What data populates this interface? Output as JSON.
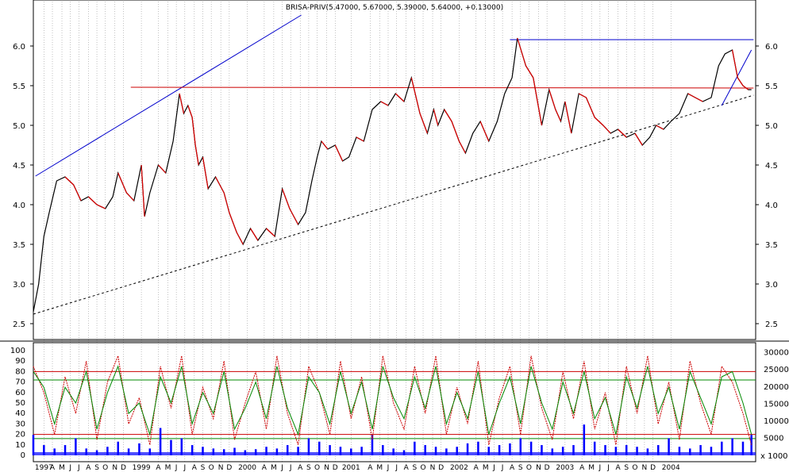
{
  "chart_data": [
    {
      "type": "line",
      "title": "BRISA-PRIV(5.47000, 5.67000, 5.39000, 5.64000, +0.13000)",
      "ylim": [
        2.3,
        6.4
      ],
      "yticks": [
        2.5,
        3.0,
        3.5,
        4.0,
        4.5,
        5.0,
        5.5,
        6.0
      ],
      "ytick_labels": [
        "2.5",
        "3.0",
        "3.5",
        "4.0",
        "4.5",
        "5.0",
        "5.5",
        "6.0"
      ],
      "grid": "vertical",
      "series": [
        {
          "color": "#000000",
          "x": [
            1997.4,
            1997.45,
            1997.5,
            1997.55,
            1997.62,
            1997.7,
            1997.78,
            1997.85,
            1997.92,
            1998.0,
            1998.08,
            1998.15,
            1998.2,
            1998.28,
            1998.35,
            1998.42,
            1998.45,
            1998.5,
            1998.58,
            1998.65,
            1998.72,
            1998.78,
            1998.82,
            1998.86,
            1998.9,
            1998.93,
            1998.96,
            1999.0,
            1999.05,
            1999.12,
            1999.2,
            1999.25,
            1999.32,
            1999.38,
            1999.45,
            1999.52,
            1999.6,
            1999.68,
            1999.75,
            1999.82,
            1999.9,
            1999.97,
            2000.03,
            2000.08,
            2000.12,
            2000.18,
            2000.25,
            2000.32,
            2000.38,
            2000.45,
            2000.52,
            2000.6,
            2000.68,
            2000.75,
            2000.82,
            2000.9,
            2000.97,
            2001.05,
            2001.12,
            2001.18,
            2001.22,
            2001.28,
            2001.35,
            2001.42,
            2001.48,
            2001.55,
            2001.62,
            2001.7,
            2001.78,
            2001.85,
            2001.92,
            2001.97,
            2002.05,
            2002.12,
            2002.2,
            2002.27,
            2002.33,
            2002.38,
            2002.42,
            2002.48,
            2002.55,
            2002.62,
            2002.7,
            2002.78,
            2002.85,
            2002.92,
            2003.0,
            2003.08,
            2003.15,
            2003.22,
            2003.28,
            2003.35,
            2003.42,
            2003.5,
            2003.58,
            2003.65,
            2003.72,
            2003.8,
            2003.87,
            2003.93,
            2004.0,
            2004.05,
            2004.1,
            2004.15,
            2004.18
          ],
          "values": [
            2.65,
            3.0,
            3.6,
            3.9,
            4.3,
            4.35,
            4.25,
            4.05,
            4.1,
            4.0,
            3.95,
            4.1,
            4.4,
            4.15,
            4.05,
            4.5,
            3.85,
            4.15,
            4.5,
            4.4,
            4.8,
            5.4,
            5.15,
            5.25,
            5.1,
            4.75,
            4.5,
            4.6,
            4.2,
            4.35,
            4.15,
            3.9,
            3.65,
            3.5,
            3.7,
            3.55,
            3.7,
            3.6,
            4.2,
            3.95,
            3.75,
            3.9,
            4.3,
            4.6,
            4.8,
            4.7,
            4.75,
            4.55,
            4.6,
            4.85,
            4.8,
            5.2,
            5.3,
            5.25,
            5.4,
            5.3,
            5.6,
            5.15,
            4.9,
            5.2,
            5.0,
            5.2,
            5.05,
            4.8,
            4.65,
            4.9,
            5.05,
            4.8,
            5.05,
            5.4,
            5.6,
            6.1,
            5.75,
            5.6,
            5.0,
            5.45,
            5.2,
            5.05,
            5.3,
            4.9,
            5.4,
            5.35,
            5.1,
            5.0,
            4.9,
            4.95,
            4.85,
            4.9,
            4.75,
            4.85,
            5.0,
            4.95,
            5.05,
            5.15,
            5.4,
            5.35,
            5.3,
            5.35,
            5.75,
            5.9,
            5.95,
            5.6,
            5.5,
            5.45,
            5.45
          ]
        }
      ],
      "lines": [
        {
          "style": "solid",
          "color": "#0000cc",
          "x": [
            1997.42,
            1999.93
          ],
          "y": [
            4.36,
            6.39
          ]
        },
        {
          "style": "solid",
          "color": "#0000cc",
          "x": [
            2001.9,
            2004.2
          ],
          "y": [
            6.08,
            6.08
          ]
        },
        {
          "style": "solid",
          "color": "#cc0000",
          "x": [
            1998.32,
            2004.2
          ],
          "y": [
            5.48,
            5.47
          ]
        },
        {
          "style": "dashed",
          "color": "#000000",
          "x": [
            1997.4,
            2004.2
          ],
          "y": [
            2.62,
            5.38
          ]
        },
        {
          "style": "solid",
          "color": "#0000cc",
          "x": [
            2003.9,
            2004.18
          ],
          "y": [
            5.25,
            5.95
          ]
        }
      ]
    },
    {
      "type": "line",
      "ylim": [
        0,
        100
      ],
      "yticks": [
        0,
        10,
        20,
        30,
        40,
        50,
        60,
        70,
        80,
        90,
        100
      ],
      "ytick_labels": [
        "0",
        "10",
        "20",
        "30",
        "40",
        "50",
        "60",
        "70",
        "80",
        "90",
        "100"
      ],
      "y2ticks": [
        5000,
        10000,
        15000,
        20000,
        25000,
        30000
      ],
      "y2tick_labels": [
        "5000",
        "10000",
        "15000",
        "20000",
        "25000",
        "30000"
      ],
      "y2_unit_label": "x 1000",
      "hlines": [
        {
          "y": 80,
          "color": "#cc0000"
        },
        {
          "y": 72,
          "color": "#008800"
        },
        {
          "y": 20,
          "color": "#cc0000"
        },
        {
          "y": 16,
          "color": "#008800"
        }
      ],
      "series": [
        {
          "style": "dashed",
          "color": "#cc0000",
          "x": [
            1997.4,
            1997.5,
            1997.6,
            1997.7,
            1997.8,
            1997.9,
            1998.0,
            1998.1,
            1998.2,
            1998.3,
            1998.4,
            1998.5,
            1998.6,
            1998.7,
            1998.8,
            1998.9,
            1999.0,
            1999.1,
            1999.2,
            1999.3,
            1999.4,
            1999.5,
            1999.6,
            1999.7,
            1999.8,
            1999.9,
            2000.0,
            2000.1,
            2000.2,
            2000.3,
            2000.4,
            2000.5,
            2000.6,
            2000.7,
            2000.8,
            2000.9,
            2001.0,
            2001.1,
            2001.2,
            2001.3,
            2001.4,
            2001.5,
            2001.6,
            2001.7,
            2001.8,
            2001.9,
            2002.0,
            2002.1,
            2002.2,
            2002.3,
            2002.4,
            2002.5,
            2002.6,
            2002.7,
            2002.8,
            2002.9,
            2003.0,
            2003.1,
            2003.2,
            2003.3,
            2003.4,
            2003.5,
            2003.6,
            2003.7,
            2003.8,
            2003.9,
            2004.0,
            2004.1,
            2004.18
          ],
          "values": [
            85,
            60,
            20,
            75,
            40,
            90,
            15,
            70,
            95,
            30,
            55,
            10,
            85,
            45,
            95,
            20,
            65,
            35,
            90,
            15,
            50,
            80,
            25,
            95,
            40,
            10,
            85,
            60,
            20,
            90,
            35,
            75,
            15,
            95,
            50,
            25,
            85,
            40,
            95,
            20,
            65,
            30,
            90,
            10,
            55,
            85,
            20,
            95,
            45,
            15,
            80,
            35,
            90,
            25,
            60,
            10,
            85,
            40,
            95,
            30,
            70,
            15,
            90,
            50,
            20,
            85,
            70,
            40,
            10
          ]
        },
        {
          "style": "solid",
          "color": "#008800",
          "x": [
            1997.4,
            1997.5,
            1997.6,
            1997.7,
            1997.8,
            1997.9,
            1998.0,
            1998.1,
            1998.2,
            1998.3,
            1998.4,
            1998.5,
            1998.6,
            1998.7,
            1998.8,
            1998.9,
            1999.0,
            1999.1,
            1999.2,
            1999.3,
            1999.4,
            1999.5,
            1999.6,
            1999.7,
            1999.8,
            1999.9,
            2000.0,
            2000.1,
            2000.2,
            2000.3,
            2000.4,
            2000.5,
            2000.6,
            2000.7,
            2000.8,
            2000.9,
            2001.0,
            2001.1,
            2001.2,
            2001.3,
            2001.4,
            2001.5,
            2001.6,
            2001.7,
            2001.8,
            2001.9,
            2002.0,
            2002.1,
            2002.2,
            2002.3,
            2002.4,
            2002.5,
            2002.6,
            2002.7,
            2002.8,
            2002.9,
            2003.0,
            2003.1,
            2003.2,
            2003.3,
            2003.4,
            2003.5,
            2003.6,
            2003.7,
            2003.8,
            2003.9,
            2004.0,
            2004.1,
            2004.18
          ],
          "values": [
            80,
            65,
            30,
            65,
            50,
            80,
            25,
            60,
            85,
            40,
            50,
            20,
            75,
            50,
            85,
            30,
            60,
            40,
            80,
            25,
            45,
            70,
            35,
            85,
            45,
            20,
            75,
            60,
            30,
            80,
            40,
            70,
            25,
            85,
            55,
            35,
            75,
            45,
            85,
            30,
            60,
            35,
            80,
            20,
            50,
            75,
            30,
            85,
            50,
            25,
            70,
            40,
            80,
            35,
            55,
            20,
            75,
            45,
            85,
            40,
            65,
            25,
            80,
            55,
            30,
            75,
            80,
            50,
            20
          ]
        }
      ],
      "volume": {
        "color": "#0000ff",
        "x": [
          1997.4,
          1997.5,
          1997.6,
          1997.7,
          1997.8,
          1997.9,
          1998.0,
          1998.1,
          1998.2,
          1998.3,
          1998.4,
          1998.5,
          1998.6,
          1998.7,
          1998.8,
          1998.9,
          1999.0,
          1999.1,
          1999.2,
          1999.3,
          1999.4,
          1999.5,
          1999.6,
          1999.7,
          1999.8,
          1999.9,
          2000.0,
          2000.1,
          2000.2,
          2000.3,
          2000.4,
          2000.5,
          2000.6,
          2000.7,
          2000.8,
          2000.9,
          2001.0,
          2001.1,
          2001.2,
          2001.3,
          2001.4,
          2001.5,
          2001.6,
          2001.7,
          2001.8,
          2001.9,
          2002.0,
          2002.1,
          2002.2,
          2002.3,
          2002.4,
          2002.5,
          2002.6,
          2002.7,
          2002.8,
          2002.9,
          2003.0,
          2003.1,
          2003.2,
          2003.3,
          2003.4,
          2003.5,
          2003.6,
          2003.7,
          2003.8,
          2003.9,
          2004.0,
          2004.1,
          2004.18
        ],
        "values": [
          6000,
          3000,
          2000,
          3000,
          5000,
          2000,
          1500,
          2500,
          4000,
          2000,
          3500,
          2000,
          8000,
          4500,
          5000,
          3000,
          2500,
          2000,
          1800,
          2200,
          1500,
          1800,
          2500,
          2000,
          3000,
          2500,
          5000,
          4000,
          3000,
          2500,
          2000,
          2500,
          6000,
          3000,
          2000,
          1500,
          4000,
          3000,
          2500,
          2000,
          2500,
          3500,
          4000,
          2500,
          3000,
          3500,
          5000,
          4000,
          3000,
          2000,
          2500,
          3000,
          9000,
          4000,
          3000,
          2500,
          3000,
          2500,
          2000,
          3000,
          5000,
          2500,
          2000,
          3000,
          2500,
          4000,
          5000,
          4000,
          6000
        ]
      }
    }
  ],
  "x_axis": {
    "labels": [
      {
        "x": 1997.5,
        "text": "1997"
      },
      {
        "x": 1997.58,
        "text": "A"
      },
      {
        "x": 1997.67,
        "text": "M"
      },
      {
        "x": 1997.75,
        "text": "J"
      },
      {
        "x": 1997.83,
        "text": "J"
      },
      {
        "x": 1997.92,
        "text": "A"
      },
      {
        "x": 1998.0,
        "text": "S"
      },
      {
        "x": 1998.08,
        "text": "O"
      },
      {
        "x": 1998.17,
        "text": "N"
      },
      {
        "x": 1998.25,
        "text": "D"
      },
      {
        "x": 1998.42,
        "text": "1999"
      },
      {
        "x": 1998.58,
        "text": "A"
      },
      {
        "x": 1998.67,
        "text": "M"
      },
      {
        "x": 1998.75,
        "text": "J"
      },
      {
        "x": 1998.83,
        "text": "J"
      },
      {
        "x": 1998.92,
        "text": "A"
      },
      {
        "x": 1999.0,
        "text": "S"
      },
      {
        "x": 1999.08,
        "text": "O"
      },
      {
        "x": 1999.17,
        "text": "N"
      },
      {
        "x": 1999.25,
        "text": "D"
      },
      {
        "x": 1999.42,
        "text": "2000"
      },
      {
        "x": 1999.58,
        "text": "A"
      },
      {
        "x": 1999.67,
        "text": "M"
      },
      {
        "x": 1999.75,
        "text": "J"
      },
      {
        "x": 1999.83,
        "text": "J"
      },
      {
        "x": 1999.92,
        "text": "A"
      },
      {
        "x": 2000.0,
        "text": "S"
      },
      {
        "x": 2000.08,
        "text": "O"
      },
      {
        "x": 2000.17,
        "text": "N"
      },
      {
        "x": 2000.25,
        "text": "D"
      },
      {
        "x": 2000.4,
        "text": "2001"
      },
      {
        "x": 2000.58,
        "text": "A"
      },
      {
        "x": 2000.67,
        "text": "M"
      },
      {
        "x": 2000.75,
        "text": "J"
      },
      {
        "x": 2000.83,
        "text": "J"
      },
      {
        "x": 2000.92,
        "text": "A"
      },
      {
        "x": 2001.0,
        "text": "S"
      },
      {
        "x": 2001.08,
        "text": "O"
      },
      {
        "x": 2001.17,
        "text": "N"
      },
      {
        "x": 2001.25,
        "text": "D"
      },
      {
        "x": 2001.42,
        "text": "2002"
      },
      {
        "x": 2001.58,
        "text": "A"
      },
      {
        "x": 2001.67,
        "text": "M"
      },
      {
        "x": 2001.75,
        "text": "J"
      },
      {
        "x": 2001.83,
        "text": "J"
      },
      {
        "x": 2001.92,
        "text": "A"
      },
      {
        "x": 2002.0,
        "text": "S"
      },
      {
        "x": 2002.08,
        "text": "O"
      },
      {
        "x": 2002.17,
        "text": "N"
      },
      {
        "x": 2002.25,
        "text": "D"
      },
      {
        "x": 2002.42,
        "text": "2003"
      },
      {
        "x": 2002.58,
        "text": "A"
      },
      {
        "x": 2002.67,
        "text": "M"
      },
      {
        "x": 2002.75,
        "text": "J"
      },
      {
        "x": 2002.83,
        "text": "J"
      },
      {
        "x": 2002.92,
        "text": "A"
      },
      {
        "x": 2003.0,
        "text": "S"
      },
      {
        "x": 2003.08,
        "text": "O"
      },
      {
        "x": 2003.17,
        "text": "N"
      },
      {
        "x": 2003.25,
        "text": "D"
      },
      {
        "x": 2003.42,
        "text": "2004"
      }
    ],
    "xlim": [
      1997.4,
      2004.22
    ]
  }
}
